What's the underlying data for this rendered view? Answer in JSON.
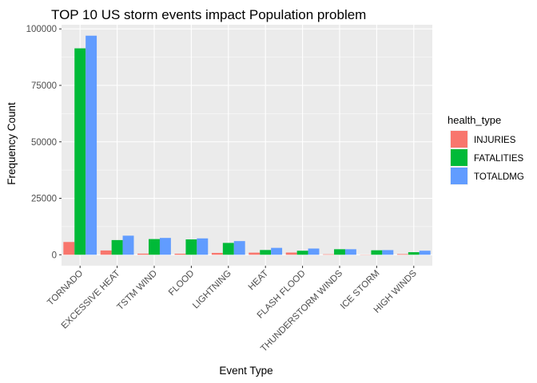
{
  "chart_data": {
    "type": "bar",
    "title": "TOP 10 US storm events impact Population problem",
    "xlabel": "Event Type",
    "ylabel": "Frequency Count",
    "categories": [
      "TORNADO",
      "EXCESSIVE HEAT",
      "TSTM WIND",
      "FLOOD",
      "LIGHTNING",
      "HEAT",
      "FLASH FLOOD",
      "THUNDERSTORM WINDS",
      "ICE STORM",
      "HIGH WINDS"
    ],
    "yticks": [
      0,
      25000,
      50000,
      75000,
      100000
    ],
    "ytick_labels": [
      "0",
      "25000",
      "50000",
      "75000",
      "100000"
    ],
    "ylim": [
      -4850,
      101850
    ],
    "grid": true,
    "legend": {
      "title": "health_type",
      "placement": "right"
    },
    "series": [
      {
        "name": "INJURIES",
        "color": "#F8766D",
        "values": [
          5650,
          1900,
          500,
          470,
          820,
          940,
          980,
          210,
          90,
          300
        ]
      },
      {
        "name": "FATALITIES",
        "color": "#00BA38",
        "values": [
          91400,
          6500,
          6950,
          6800,
          5250,
          2100,
          1780,
          2450,
          1980,
          1140
        ]
      },
      {
        "name": "TOTALDMG",
        "color": "#619CFF",
        "values": [
          97000,
          8450,
          7450,
          7250,
          6050,
          3050,
          2750,
          2450,
          2060,
          1780
        ]
      }
    ]
  }
}
